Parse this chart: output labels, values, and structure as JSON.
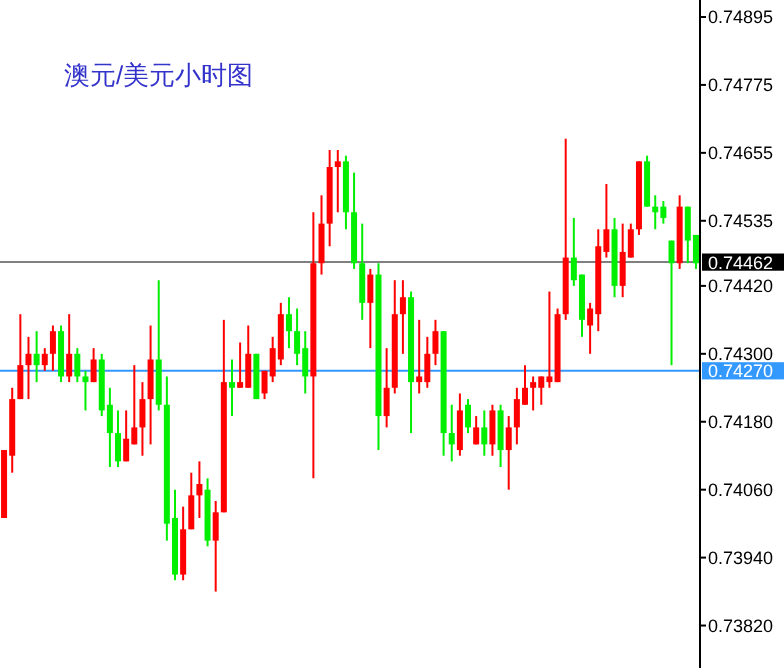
{
  "chart_data": {
    "type": "candlestick",
    "title": "澳元/美元小时图",
    "categories": [
      null,
      null,
      null,
      null,
      null,
      null,
      null,
      null,
      null,
      null,
      null,
      null,
      null,
      null,
      null,
      null,
      null,
      null,
      null,
      null,
      null,
      null,
      null,
      null,
      null,
      null,
      null,
      null,
      null,
      null,
      null,
      null,
      null,
      null,
      null,
      null,
      null,
      null,
      null,
      null,
      null,
      null,
      null,
      null,
      null,
      null,
      null,
      null,
      null,
      null,
      null,
      null,
      null,
      null,
      null,
      null,
      null,
      null,
      null,
      null,
      null,
      null,
      null,
      null,
      null,
      null,
      null,
      null,
      null,
      null,
      null,
      null,
      null,
      null,
      null,
      null,
      null,
      null,
      null,
      null,
      null,
      null,
      null,
      null,
      null,
      null
    ],
    "ohlc": [
      [
        0.7401,
        0.7413,
        0.7401,
        0.7413
      ],
      [
        0.7412,
        0.7424,
        0.7409,
        0.7422
      ],
      [
        0.7422,
        0.7437,
        0.7422,
        0.7428
      ],
      [
        0.7428,
        0.7433,
        0.7422,
        0.743
      ],
      [
        0.743,
        0.7434,
        0.7425,
        0.7428
      ],
      [
        0.7428,
        0.7431,
        0.7427,
        0.743
      ],
      [
        0.743,
        0.7435,
        0.7427,
        0.7434
      ],
      [
        0.7434,
        0.7435,
        0.7425,
        0.7426
      ],
      [
        0.7426,
        0.7437,
        0.7425,
        0.743
      ],
      [
        0.743,
        0.7431,
        0.7425,
        0.7426
      ],
      [
        0.7426,
        0.7427,
        0.742,
        0.7425
      ],
      [
        0.7425,
        0.7431,
        0.7425,
        0.7429
      ],
      [
        0.7429,
        0.743,
        0.7419,
        0.742
      ],
      [
        0.7421,
        0.7424,
        0.741,
        0.7416
      ],
      [
        0.7416,
        0.742,
        0.741,
        0.7411
      ],
      [
        0.7411,
        0.742,
        0.7411,
        0.7415
      ],
      [
        0.7414,
        0.7428,
        0.7414,
        0.7417
      ],
      [
        0.7417,
        0.7425,
        0.7412,
        0.7422
      ],
      [
        0.7422,
        0.7435,
        0.7414,
        0.7429
      ],
      [
        0.7429,
        0.7443,
        0.742,
        0.7421
      ],
      [
        0.7421,
        0.7426,
        0.7397,
        0.74
      ],
      [
        0.7401,
        0.7406,
        0.739,
        0.7391
      ],
      [
        0.7391,
        0.7403,
        0.739,
        0.7399
      ],
      [
        0.7399,
        0.7409,
        0.7399,
        0.7405
      ],
      [
        0.7405,
        0.7411,
        0.7401,
        0.7407
      ],
      [
        0.7406,
        0.7408,
        0.7396,
        0.7397
      ],
      [
        0.7397,
        0.7404,
        0.7388,
        0.7402
      ],
      [
        0.7402,
        0.7436,
        0.7402,
        0.7425
      ],
      [
        0.7425,
        0.7429,
        0.7419,
        0.7424
      ],
      [
        0.7424,
        0.7432,
        0.7424,
        0.7425
      ],
      [
        0.7424,
        0.7435,
        0.7424,
        0.743
      ],
      [
        0.743,
        0.743,
        0.7422,
        0.7422
      ],
      [
        0.7423,
        0.7427,
        0.7422,
        0.7427
      ],
      [
        0.7426,
        0.7433,
        0.7425,
        0.7431
      ],
      [
        0.7429,
        0.7439,
        0.7428,
        0.7437
      ],
      [
        0.7437,
        0.744,
        0.7431,
        0.7434
      ],
      [
        0.7434,
        0.7438,
        0.7428,
        0.743
      ],
      [
        0.7431,
        0.7434,
        0.7423,
        0.7426
      ],
      [
        0.7426,
        0.7455,
        0.7408,
        0.7446
      ],
      [
        0.7446,
        0.7458,
        0.7444,
        0.7453
      ],
      [
        0.7453,
        0.7466,
        0.7449,
        0.7463
      ],
      [
        0.7463,
        0.7466,
        0.7455,
        0.7464
      ],
      [
        0.7464,
        0.7465,
        0.7452,
        0.7455
      ],
      [
        0.7455,
        0.7462,
        0.7445,
        0.7446
      ],
      [
        0.7446,
        0.7453,
        0.7436,
        0.7439
      ],
      [
        0.7439,
        0.7445,
        0.7431,
        0.7444
      ],
      [
        0.7444,
        0.7446,
        0.7413,
        0.7419
      ],
      [
        0.7419,
        0.7431,
        0.7417,
        0.7424
      ],
      [
        0.7424,
        0.7443,
        0.7423,
        0.7437
      ],
      [
        0.7437,
        0.7443,
        0.743,
        0.744
      ],
      [
        0.744,
        0.7441,
        0.7416,
        0.7425
      ],
      [
        0.7425,
        0.7436,
        0.7423,
        0.7426
      ],
      [
        0.7425,
        0.7433,
        0.7424,
        0.743
      ],
      [
        0.743,
        0.7436,
        0.7428,
        0.7434
      ],
      [
        0.7434,
        0.7434,
        0.7412,
        0.7416
      ],
      [
        0.7416,
        0.7421,
        0.7411,
        0.7414
      ],
      [
        0.7413,
        0.7423,
        0.7412,
        0.742
      ],
      [
        0.7421,
        0.7422,
        0.7416,
        0.7417
      ],
      [
        0.7414,
        0.7419,
        0.7414,
        0.7417
      ],
      [
        0.7417,
        0.742,
        0.7412,
        0.7414
      ],
      [
        0.7414,
        0.7421,
        0.7412,
        0.742
      ],
      [
        0.742,
        0.7421,
        0.741,
        0.7413
      ],
      [
        0.7413,
        0.7419,
        0.7406,
        0.7417
      ],
      [
        0.7417,
        0.7424,
        0.7414,
        0.7422
      ],
      [
        0.7421,
        0.7428,
        0.7421,
        0.7424
      ],
      [
        0.7424,
        0.7426,
        0.742,
        0.7425
      ],
      [
        0.7424,
        0.7426,
        0.7421,
        0.7426
      ],
      [
        0.7425,
        0.7441,
        0.7424,
        0.7426
      ],
      [
        0.7425,
        0.7438,
        0.7425,
        0.7437
      ],
      [
        0.7437,
        0.7468,
        0.7436,
        0.7447
      ],
      [
        0.7447,
        0.7454,
        0.7442,
        0.7443
      ],
      [
        0.7444,
        0.7444,
        0.7433,
        0.7436
      ],
      [
        0.7435,
        0.7439,
        0.743,
        0.7438
      ],
      [
        0.7437,
        0.7452,
        0.7434,
        0.7449
      ],
      [
        0.7448,
        0.746,
        0.7447,
        0.7452
      ],
      [
        0.7452,
        0.7454,
        0.744,
        0.7442
      ],
      [
        0.7442,
        0.7453,
        0.744,
        0.7448
      ],
      [
        0.7447,
        0.7453,
        0.7447,
        0.7452
      ],
      [
        0.7452,
        0.7464,
        0.7451,
        0.7464
      ],
      [
        0.7464,
        0.7465,
        0.7456,
        0.7456
      ],
      [
        0.7456,
        0.7458,
        0.7452,
        0.7455
      ],
      [
        0.7456,
        0.7457,
        0.7453,
        0.7454
      ],
      [
        0.745,
        0.745,
        0.7428,
        0.7446
      ],
      [
        0.7446,
        0.7458,
        0.7445,
        0.7456
      ],
      [
        0.7456,
        0.7456,
        0.7446,
        0.745
      ],
      [
        0.7451,
        0.7451,
        0.7445,
        0.7446
      ]
    ],
    "colors": [
      "#ff0000",
      "#ff0000",
      "#ff0000",
      "#ff0000",
      "#00ee00",
      "#ff0000",
      "#ff0000",
      "#00ee00",
      "#ff0000",
      "#00ee00",
      "#00ee00",
      "#ff0000",
      "#00ee00",
      "#00ee00",
      "#00ee00",
      "#ff0000",
      "#ff0000",
      "#ff0000",
      "#ff0000",
      "#00ee00",
      "#00ee00",
      "#00ee00",
      "#ff0000",
      "#ff0000",
      "#ff0000",
      "#00ee00",
      "#ff0000",
      "#ff0000",
      "#00ee00",
      "#ff0000",
      "#ff0000",
      "#00ee00",
      "#ff0000",
      "#ff0000",
      "#ff0000",
      "#00ee00",
      "#00ee00",
      "#00ee00",
      "#ff0000",
      "#ff0000",
      "#ff0000",
      "#ff0000",
      "#00ee00",
      "#00ee00",
      "#00ee00",
      "#ff0000",
      "#00ee00",
      "#ff0000",
      "#ff0000",
      "#ff0000",
      "#00ee00",
      "#ff0000",
      "#ff0000",
      "#ff0000",
      "#00ee00",
      "#00ee00",
      "#ff0000",
      "#00ee00",
      "#ff0000",
      "#00ee00",
      "#ff0000",
      "#00ee00",
      "#ff0000",
      "#ff0000",
      "#ff0000",
      "#ff0000",
      "#ff0000",
      "#ff0000",
      "#ff0000",
      "#ff0000",
      "#00ee00",
      "#00ee00",
      "#ff0000",
      "#ff0000",
      "#ff0000",
      "#00ee00",
      "#ff0000",
      "#ff0000",
      "#ff0000",
      "#00ee00",
      "#00ee00",
      "#00ee00",
      "#00ee00",
      "#ff0000",
      "#00ee00",
      "#00ee00"
    ],
    "ylim": [
      0.73745,
      0.74925
    ],
    "yticks": [
      {
        "value": 0.7382,
        "label": "0.73820"
      },
      {
        "value": 0.7394,
        "label": "0.73940"
      },
      {
        "value": 0.7406,
        "label": "0.74060"
      },
      {
        "value": 0.7418,
        "label": "0.74180"
      },
      {
        "value": 0.743,
        "label": "0.74300"
      },
      {
        "value": 0.7442,
        "label": "0.74420"
      },
      {
        "value": 0.74535,
        "label": "0.74535"
      },
      {
        "value": 0.74655,
        "label": "0.74655"
      },
      {
        "value": 0.74775,
        "label": "0.74775"
      },
      {
        "value": 0.74895,
        "label": "0.74895"
      }
    ],
    "ref_lines": [
      {
        "axis": "y",
        "value": 0.74462,
        "label": "0.74462",
        "color": "#808080"
      },
      {
        "axis": "y",
        "value": 0.7427,
        "label": "0.74270",
        "color": "#3399ff"
      }
    ],
    "grid": false
  }
}
